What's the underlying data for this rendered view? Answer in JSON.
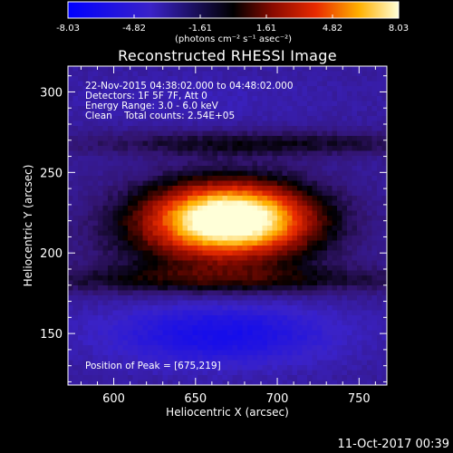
{
  "colorbar": {
    "ticks": [
      "-8.03",
      "-4.82",
      "-1.61",
      "1.61",
      "4.82",
      "8.03"
    ],
    "range": [
      -8.03,
      8.03
    ]
  },
  "units_label": "(photons cm⁻² s⁻¹ asec⁻²)",
  "chart_data": {
    "type": "heatmap",
    "title": "Reconstructed RHESSI Image",
    "xlabel": "Heliocentric X (arcsec)",
    "ylabel": "Heliocentric Y (arcsec)",
    "xlim": [
      572,
      767
    ],
    "ylim": [
      118,
      316
    ],
    "xticks": [
      600,
      650,
      700,
      750
    ],
    "yticks": [
      150,
      200,
      250,
      300
    ],
    "color_range": [
      -8.03,
      8.03
    ],
    "peak": [
      675,
      219
    ],
    "features": [
      {
        "kind": "positive-source",
        "center": [
          672,
          222
        ],
        "peak_value": 8.03
      },
      {
        "kind": "negative-lobe",
        "center": [
          665,
          150
        ],
        "approx_value": -6.5
      },
      {
        "kind": "negative-lobe",
        "center": [
          650,
          296
        ],
        "approx_value": -3.5
      }
    ]
  },
  "annotations": {
    "time_range": "22-Nov-2015 04:38:02.000 to 04:48:02.000",
    "detectors": "Detectors: 1F 5F 7F, Att 0",
    "energy": "Energy Range: 3.0 - 6.0 keV",
    "clean_line": "Clean    Total counts: 2.54E+05",
    "peak_text": "Position of Peak = [675,219]"
  },
  "footer_date": "11-Oct-2017 00:39"
}
